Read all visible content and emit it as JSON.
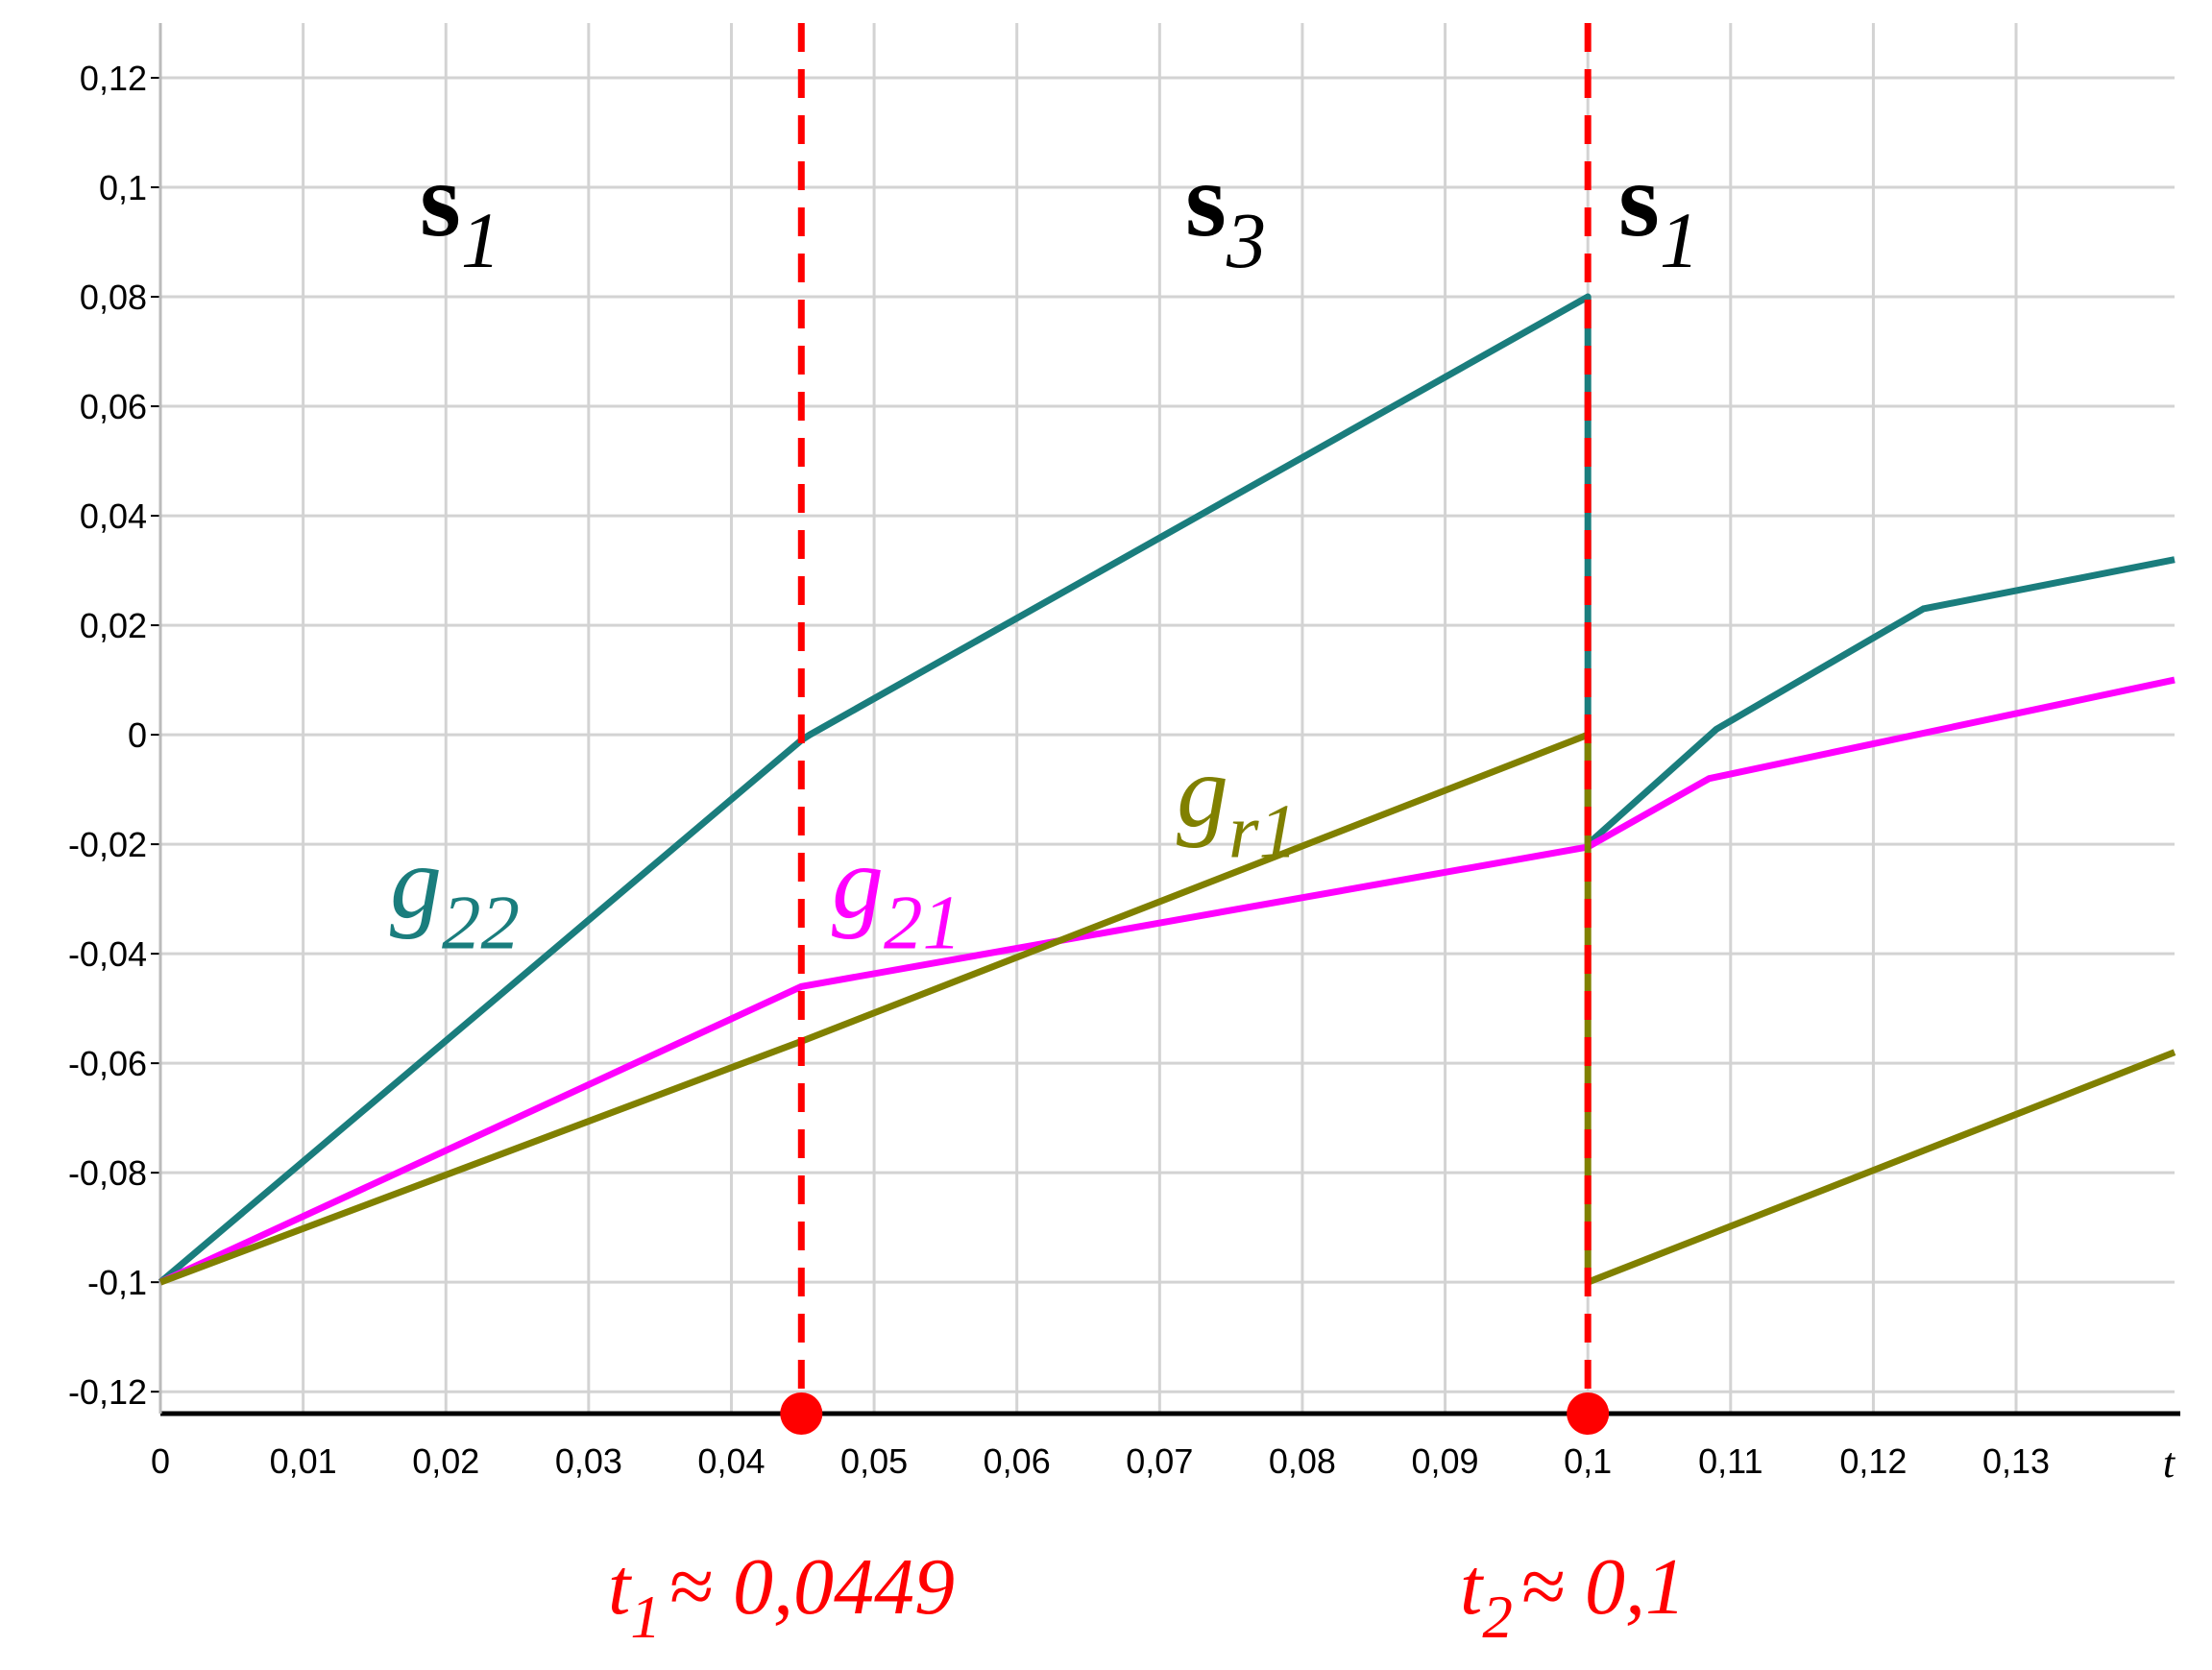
{
  "chart_data": {
    "type": "line",
    "xlim": [
      0,
      0.1411
    ],
    "ylim": [
      -0.124,
      0.13
    ],
    "grid": true,
    "x_label": "t",
    "xticks": [
      0,
      {
        "value": 0.01,
        "label": "0,01"
      },
      {
        "value": 0.02,
        "label": "0,02"
      },
      {
        "value": 0.03,
        "label": "0,03"
      },
      {
        "value": 0.04,
        "label": "0,04"
      },
      {
        "value": 0.05,
        "label": "0,05"
      },
      {
        "value": 0.06,
        "label": "0,06"
      },
      {
        "value": 0.07,
        "label": "0,07"
      },
      {
        "value": 0.08,
        "label": "0,08"
      },
      {
        "value": 0.09,
        "label": "0,09"
      },
      {
        "value": 0.1,
        "label": "0,1"
      },
      {
        "value": 0.11,
        "label": "0,11"
      },
      {
        "value": 0.12,
        "label": "0,12"
      },
      {
        "value": 0.13,
        "label": "0,13"
      }
    ],
    "yticks": [
      {
        "value": -0.12,
        "label": "-0,12"
      },
      {
        "value": -0.1,
        "label": "-0,1"
      },
      {
        "value": -0.08,
        "label": "-0,08"
      },
      {
        "value": -0.06,
        "label": "-0,06"
      },
      {
        "value": -0.04,
        "label": "-0,04"
      },
      {
        "value": -0.02,
        "label": "-0,02"
      },
      0,
      {
        "value": 0.02,
        "label": "0,02"
      },
      {
        "value": 0.04,
        "label": "0,04"
      },
      {
        "value": 0.06,
        "label": "0,06"
      },
      {
        "value": 0.08,
        "label": "0,08"
      },
      {
        "value": 0.1,
        "label": "0,1"
      },
      {
        "value": 0.12,
        "label": "0,12"
      }
    ],
    "series": [
      {
        "label": {
          "main": "g",
          "sub": "22"
        },
        "color": "#1a7d7d",
        "x": [
          0,
          0.0449,
          0.0455,
          0.1,
          0.1,
          0.109,
          0.1235,
          0.1411
        ],
        "values": [
          -0.1,
          -0.001,
          0.0,
          0.08,
          -0.02,
          0.001,
          0.023,
          0.032
        ]
      },
      {
        "label": {
          "main": "g",
          "sub": "21"
        },
        "color": "#ff00ff",
        "x": [
          0,
          0.0449,
          0.1,
          0.1085,
          0.1411
        ],
        "values": [
          -0.1,
          -0.046,
          -0.0205,
          -0.008,
          0.01
        ]
      },
      {
        "label": {
          "main": "g",
          "sub": "r1"
        },
        "color": "#808000",
        "x": [
          0,
          0.0449,
          0.1,
          0.1,
          0.1411
        ],
        "values": [
          -0.1,
          -0.056,
          0.0,
          -0.1,
          -0.058
        ]
      }
    ],
    "regions": [
      {
        "main": "s",
        "sub": "1"
      },
      {
        "main": "s",
        "sub": "3"
      },
      {
        "main": "s",
        "sub": "1"
      }
    ],
    "marker_color": "#ff0000",
    "markers": [
      {
        "value": 0.0449,
        "label": {
          "main": "t",
          "sub": "1",
          "rest": "≈ 0,0449"
        }
      },
      {
        "value": 0.1,
        "label": {
          "main": "t",
          "sub": "2",
          "rest": "≈ 0,1"
        }
      }
    ]
  }
}
